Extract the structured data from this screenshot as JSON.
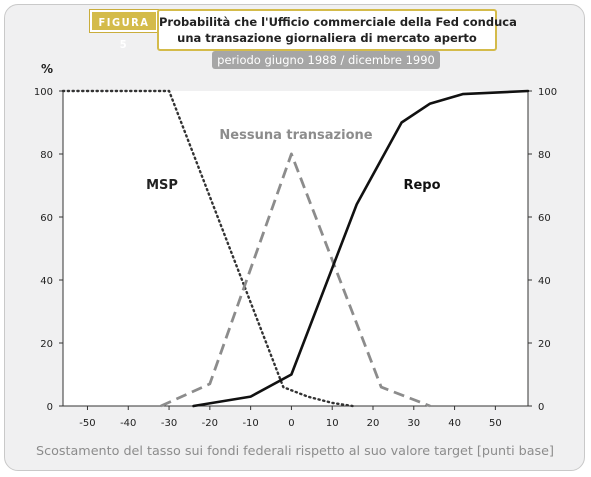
{
  "figure": {
    "badge": "FIGURA 5",
    "title_line1": "Probabilità che l'Ufficio commerciale della Fed conduca",
    "title_line2": "una transazione giornaliera di mercato aperto",
    "period": "periodo giugno 1988 / dicembre 1990"
  },
  "colors": {
    "badge": "#d4bb4a",
    "frame_bg": "#f0f0f1",
    "period_bg": "#a6a6a6",
    "repo": "#111111",
    "msp": "#333333",
    "nessuna": "#8c8c8c"
  },
  "chart_data": {
    "type": "line",
    "xlabel": "Scostamento del tasso sui fondi federali rispetto al suo valore target [punti base]",
    "ylabel": "%",
    "xlim": [
      -56,
      58
    ],
    "ylim": [
      0,
      100
    ],
    "x_ticks": [
      -50,
      -40,
      -30,
      -20,
      -10,
      0,
      10,
      20,
      30,
      40,
      50
    ],
    "y_ticks": [
      0,
      20,
      40,
      60,
      80,
      100
    ],
    "grid": false,
    "legend": "inline labels",
    "series": [
      {
        "name": "MSP",
        "style": "dotted",
        "x": [
          -56,
          -30,
          -2,
          4,
          10,
          15
        ],
        "y": [
          100,
          100,
          6,
          3,
          1,
          0
        ]
      },
      {
        "name": "Nessuna transazione",
        "style": "dashed",
        "x": [
          -32,
          -20,
          0,
          22,
          34
        ],
        "y": [
          0,
          7,
          80,
          6,
          0
        ]
      },
      {
        "name": "Repo",
        "style": "solid",
        "x": [
          -24,
          -10,
          0,
          16,
          27,
          34,
          42,
          58
        ],
        "y": [
          0,
          3,
          10,
          64,
          90,
          96,
          99,
          100
        ]
      }
    ]
  }
}
